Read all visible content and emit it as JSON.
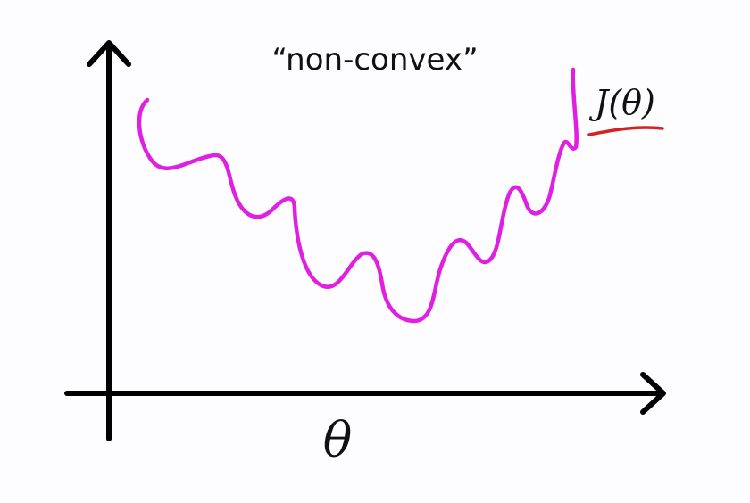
{
  "title": "“non-convex”",
  "curve_label": "J(θ)",
  "x_axis_label": "θ",
  "colors": {
    "background": "#fdfcfe",
    "axes": "#000000",
    "curve": "#e020e0",
    "underline": "#d82020"
  }
}
